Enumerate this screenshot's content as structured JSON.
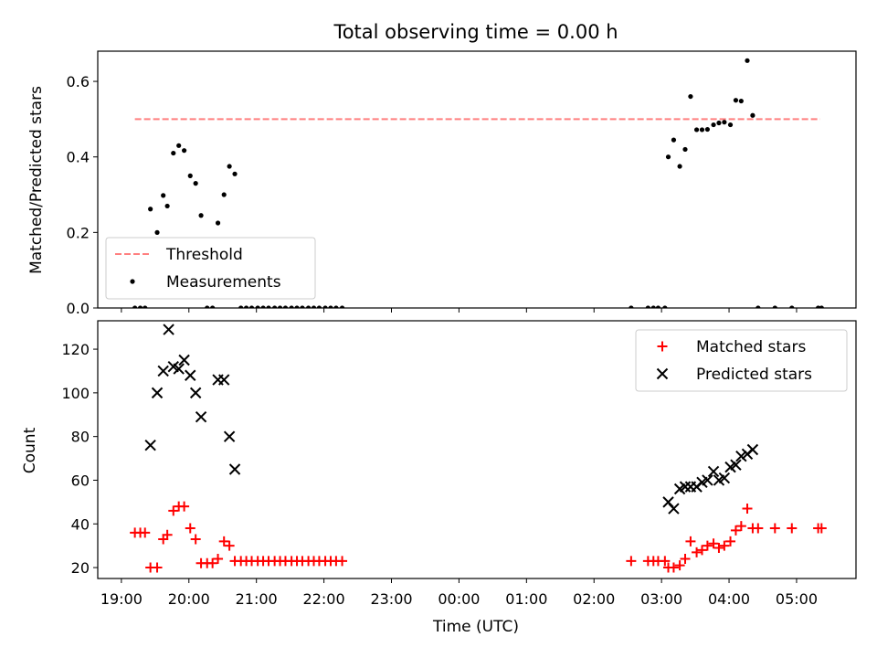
{
  "chart_data": [
    {
      "type": "scatter",
      "title": "Total observing time = 0.00 h",
      "xlabel": "",
      "ylabel": "Matched/Predicted stars",
      "ylim": [
        0,
        0.68
      ],
      "yticks": [
        "0.0",
        "0.2",
        "0.4",
        "0.6"
      ],
      "xlim_hours": [
        18.65,
        29.88
      ],
      "legend_position": "lower-left",
      "series": [
        {
          "name": "Threshold",
          "style": "dashed-line",
          "color": "#ff7f7f",
          "x": [
            19.2,
            29.35
          ],
          "y": [
            0.5,
            0.5
          ]
        },
        {
          "name": "Measurements",
          "style": "dot",
          "color": "#000000",
          "x": [
            19.2,
            19.28,
            19.35,
            19.43,
            19.53,
            19.62,
            19.68,
            19.77,
            19.85,
            19.93,
            20.02,
            20.1,
            20.18,
            20.27,
            20.35,
            20.43,
            20.52,
            20.6,
            20.68,
            20.77,
            20.85,
            20.93,
            21.02,
            21.1,
            21.18,
            21.27,
            21.35,
            21.43,
            21.52,
            21.6,
            21.68,
            21.77,
            21.85,
            21.93,
            22.02,
            22.1,
            22.18,
            22.27,
            26.55,
            26.8,
            26.88,
            26.95,
            27.05,
            27.1,
            27.18,
            27.27,
            27.35,
            27.43,
            27.52,
            27.6,
            27.68,
            27.77,
            27.85,
            27.93,
            28.02,
            28.1,
            28.18,
            28.27,
            28.35,
            28.43,
            28.68,
            28.93,
            29.32,
            29.37
          ],
          "y": [
            0,
            0,
            0,
            0.262,
            0.2,
            0.298,
            0.27,
            0.41,
            0.43,
            0.417,
            0.35,
            0.33,
            0.245,
            0,
            0,
            0.225,
            0.3,
            0.375,
            0.355,
            0,
            0,
            0,
            0,
            0,
            0,
            0,
            0,
            0,
            0,
            0,
            0,
            0,
            0,
            0,
            0,
            0,
            0,
            0,
            0,
            0,
            0,
            0,
            0,
            0.4,
            0.445,
            0.375,
            0.42,
            0.56,
            0.472,
            0.472,
            0.473,
            0.485,
            0.49,
            0.492,
            0.485,
            0.55,
            0.548,
            0.655,
            0.51,
            0,
            0,
            0,
            0,
            0
          ]
        }
      ]
    },
    {
      "type": "scatter",
      "title": "",
      "xlabel": "Time (UTC)",
      "ylabel": "Count",
      "ylim": [
        15,
        133
      ],
      "yticks": [
        "20",
        "40",
        "60",
        "80",
        "100",
        "120"
      ],
      "xlim_hours": [
        18.65,
        29.88
      ],
      "xticks": [
        "19:00",
        "20:00",
        "21:00",
        "22:00",
        "23:00",
        "00:00",
        "01:00",
        "02:00",
        "03:00",
        "04:00",
        "05:00"
      ],
      "legend_position": "upper-right",
      "series": [
        {
          "name": "Matched stars",
          "style": "plus",
          "color": "#ff0000",
          "x": [
            19.2,
            19.28,
            19.35,
            19.43,
            19.53,
            19.62,
            19.68,
            19.77,
            19.85,
            19.93,
            20.02,
            20.1,
            20.18,
            20.27,
            20.35,
            20.43,
            20.52,
            20.6,
            20.68,
            20.77,
            20.85,
            20.93,
            21.02,
            21.1,
            21.18,
            21.27,
            21.35,
            21.43,
            21.52,
            21.6,
            21.68,
            21.77,
            21.85,
            21.93,
            22.02,
            22.1,
            22.18,
            22.27,
            26.55,
            26.8,
            26.88,
            26.95,
            27.05,
            27.1,
            27.18,
            27.27,
            27.35,
            27.43,
            27.52,
            27.6,
            27.68,
            27.77,
            27.85,
            27.93,
            28.02,
            28.1,
            28.18,
            28.27,
            28.35,
            28.43,
            28.68,
            28.93,
            29.32,
            29.37
          ],
          "y": [
            36,
            36,
            36,
            20,
            20,
            33,
            35,
            46,
            48,
            48,
            38,
            33,
            22,
            22,
            22,
            24,
            32,
            30,
            23,
            23,
            23,
            23,
            23,
            23,
            23,
            23,
            23,
            23,
            23,
            23,
            23,
            23,
            23,
            23,
            23,
            23,
            23,
            23,
            23,
            23,
            23,
            23,
            23,
            20,
            20,
            21,
            24,
            32,
            27,
            28,
            30,
            31,
            29,
            30,
            32,
            37,
            39,
            47,
            38,
            38,
            38,
            38,
            38,
            38
          ]
        },
        {
          "name": "Predicted stars",
          "style": "x",
          "color": "#000000",
          "x": [
            19.43,
            19.53,
            19.62,
            19.7,
            19.77,
            19.85,
            19.93,
            20.02,
            20.1,
            20.18,
            20.43,
            20.52,
            20.6,
            20.68,
            27.1,
            27.18,
            27.27,
            27.35,
            27.43,
            27.52,
            27.6,
            27.68,
            27.77,
            27.85,
            27.93,
            28.02,
            28.1,
            28.18,
            28.27,
            28.35
          ],
          "y": [
            76,
            100,
            110,
            129,
            112,
            111,
            115,
            108,
            100,
            89,
            106,
            106,
            80,
            65,
            50,
            47,
            56,
            57,
            57,
            57,
            59,
            60,
            64,
            60,
            61,
            66,
            67,
            71,
            72,
            74
          ]
        }
      ]
    }
  ]
}
